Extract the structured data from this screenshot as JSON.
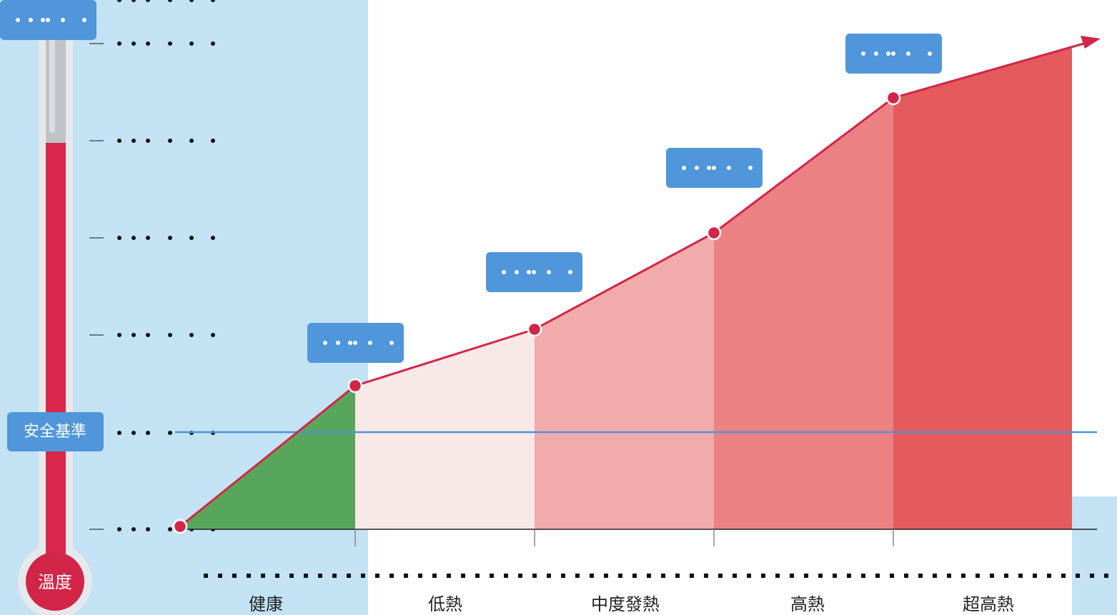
{
  "thermometer": {
    "label": "溫度"
  },
  "baseline": {
    "label": "安全基準"
  },
  "categories": [
    "健康",
    "低熱",
    "中度發熱",
    "高熱",
    "超高熱"
  ]
}
